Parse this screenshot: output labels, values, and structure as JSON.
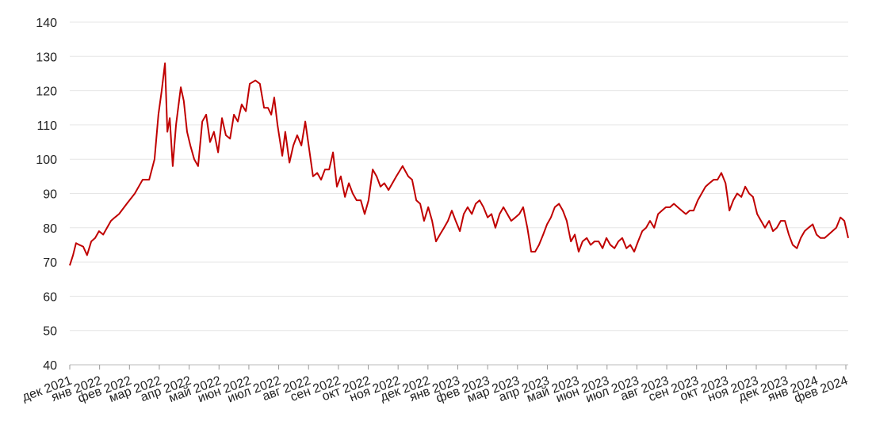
{
  "chart_data": {
    "type": "line",
    "color": "#c00000",
    "grid": true,
    "ylim": [
      40,
      140
    ],
    "yticks": [
      40,
      50,
      60,
      70,
      80,
      90,
      100,
      110,
      120,
      130,
      140
    ],
    "xlim": [
      0,
      26.08
    ],
    "xticks": [
      {
        "value": 0,
        "label": "дек 2021"
      },
      {
        "value": 1,
        "label": "янв 2022"
      },
      {
        "value": 2,
        "label": "фев 2022"
      },
      {
        "value": 3,
        "label": "мар 2022"
      },
      {
        "value": 4,
        "label": "апр 2022"
      },
      {
        "value": 5,
        "label": "май 2022"
      },
      {
        "value": 6,
        "label": "июн 2022"
      },
      {
        "value": 7,
        "label": "июл 2022"
      },
      {
        "value": 8,
        "label": "авг 2022"
      },
      {
        "value": 9,
        "label": "сен 2022"
      },
      {
        "value": 10,
        "label": "окт 2022"
      },
      {
        "value": 11,
        "label": "ноя 2022"
      },
      {
        "value": 12,
        "label": "дек 2022"
      },
      {
        "value": 13,
        "label": "янв 2023"
      },
      {
        "value": 14,
        "label": "фев 2023"
      },
      {
        "value": 15,
        "label": "мар 2023"
      },
      {
        "value": 16,
        "label": "апр 2023"
      },
      {
        "value": 17,
        "label": "май 2023"
      },
      {
        "value": 18,
        "label": "июн 2023"
      },
      {
        "value": 19,
        "label": "июл 2023"
      },
      {
        "value": 20,
        "label": "авг 2023"
      },
      {
        "value": 21,
        "label": "сен 2023"
      },
      {
        "value": 22,
        "label": "окт 2023"
      },
      {
        "value": 23,
        "label": "ноя 2023"
      },
      {
        "value": 24,
        "label": "дек 2023"
      },
      {
        "value": 25,
        "label": "янв 2024"
      },
      {
        "value": 26,
        "label": "фев 2024"
      }
    ],
    "x": [
      0,
      0.11,
      0.21,
      0.32,
      0.45,
      0.58,
      0.72,
      0.85,
      0.98,
      1.12,
      1.25,
      1.38,
      1.51,
      1.65,
      1.91,
      2.18,
      2.44,
      2.66,
      2.84,
      2.97,
      3.08,
      3.19,
      3.27,
      3.35,
      3.45,
      3.56,
      3.72,
      3.82,
      3.93,
      4.04,
      4.17,
      4.3,
      4.44,
      4.57,
      4.7,
      4.83,
      4.97,
      5.1,
      5.23,
      5.37,
      5.5,
      5.63,
      5.76,
      5.9,
      6.03,
      6.22,
      6.37,
      6.51,
      6.64,
      6.75,
      6.85,
      6.96,
      7.12,
      7.22,
      7.36,
      7.49,
      7.62,
      7.76,
      7.89,
      8.02,
      8.15,
      8.29,
      8.42,
      8.55,
      8.69,
      8.82,
      8.95,
      9.08,
      9.22,
      9.35,
      9.48,
      9.61,
      9.75,
      9.88,
      10.01,
      10.15,
      10.28,
      10.41,
      10.54,
      10.68,
      10.81,
      10.94,
      11.15,
      11.34,
      11.47,
      11.61,
      11.74,
      11.87,
      12.01,
      12.14,
      12.27,
      12.4,
      12.54,
      12.67,
      12.8,
      12.93,
      13.07,
      13.2,
      13.33,
      13.47,
      13.6,
      13.73,
      13.86,
      14.0,
      14.13,
      14.26,
      14.4,
      14.53,
      14.66,
      14.79,
      14.93,
      15.06,
      15.19,
      15.33,
      15.46,
      15.59,
      15.72,
      15.86,
      15.99,
      16.12,
      16.25,
      16.39,
      16.52,
      16.65,
      16.79,
      16.92,
      17.05,
      17.18,
      17.32,
      17.45,
      17.58,
      17.72,
      17.85,
      17.98,
      18.11,
      18.25,
      18.38,
      18.51,
      18.65,
      18.78,
      18.91,
      19.04,
      19.18,
      19.31,
      19.44,
      19.58,
      19.71,
      19.84,
      19.97,
      20.11,
      20.24,
      20.37,
      20.5,
      20.64,
      20.77,
      20.9,
      21.04,
      21.17,
      21.3,
      21.43,
      21.57,
      21.7,
      21.83,
      21.97,
      22.1,
      22.23,
      22.36,
      22.5,
      22.63,
      22.76,
      22.89,
      23.03,
      23.16,
      23.29,
      23.43,
      23.56,
      23.69,
      23.82,
      23.96,
      24.09,
      24.22,
      24.36,
      24.49,
      24.62,
      24.75,
      24.89,
      25.02,
      25.15,
      25.29,
      25.42,
      25.55,
      25.68,
      25.82,
      25.95,
      26.08
    ],
    "values": [
      69,
      72,
      75.5,
      75,
      74.5,
      72,
      76,
      77,
      79,
      78,
      80,
      82,
      83,
      84,
      87,
      90,
      94,
      94,
      100,
      113,
      120,
      128,
      108,
      112,
      98,
      110,
      121,
      117,
      108,
      104,
      100,
      98,
      111,
      113,
      105,
      108,
      102,
      112,
      107,
      106,
      113,
      111,
      116,
      114,
      122,
      123,
      122,
      115,
      115,
      113,
      118,
      110,
      101,
      108,
      99,
      104,
      107,
      104,
      111,
      103,
      95,
      96,
      94,
      97,
      97,
      102,
      92,
      95,
      89,
      93,
      90,
      88,
      88,
      84,
      88,
      97,
      95,
      92,
      93,
      91,
      93,
      95,
      98,
      95,
      94,
      88,
      87,
      82,
      86,
      82,
      76,
      78,
      80,
      82,
      85,
      82,
      79,
      84,
      86,
      84,
      87,
      88,
      86,
      83,
      84,
      80,
      84,
      86,
      84,
      82,
      83,
      84,
      86,
      80,
      73,
      73,
      75,
      78,
      81,
      83,
      86,
      87,
      85,
      82,
      76,
      78,
      73,
      76,
      77,
      75,
      76,
      76,
      74,
      77,
      75,
      74,
      76,
      77,
      74,
      75,
      73,
      76,
      79,
      80,
      82,
      80,
      84,
      85,
      86,
      86,
      87,
      86,
      85,
      84,
      85,
      85,
      88,
      90,
      92,
      93,
      94,
      94,
      96,
      93,
      85,
      88,
      90,
      89,
      92,
      90,
      89,
      84,
      82,
      80,
      82,
      79,
      80,
      82,
      82,
      78,
      75,
      74,
      77,
      79,
      80,
      81,
      78,
      77,
      77,
      78,
      79,
      80,
      83,
      82,
      77
    ]
  }
}
